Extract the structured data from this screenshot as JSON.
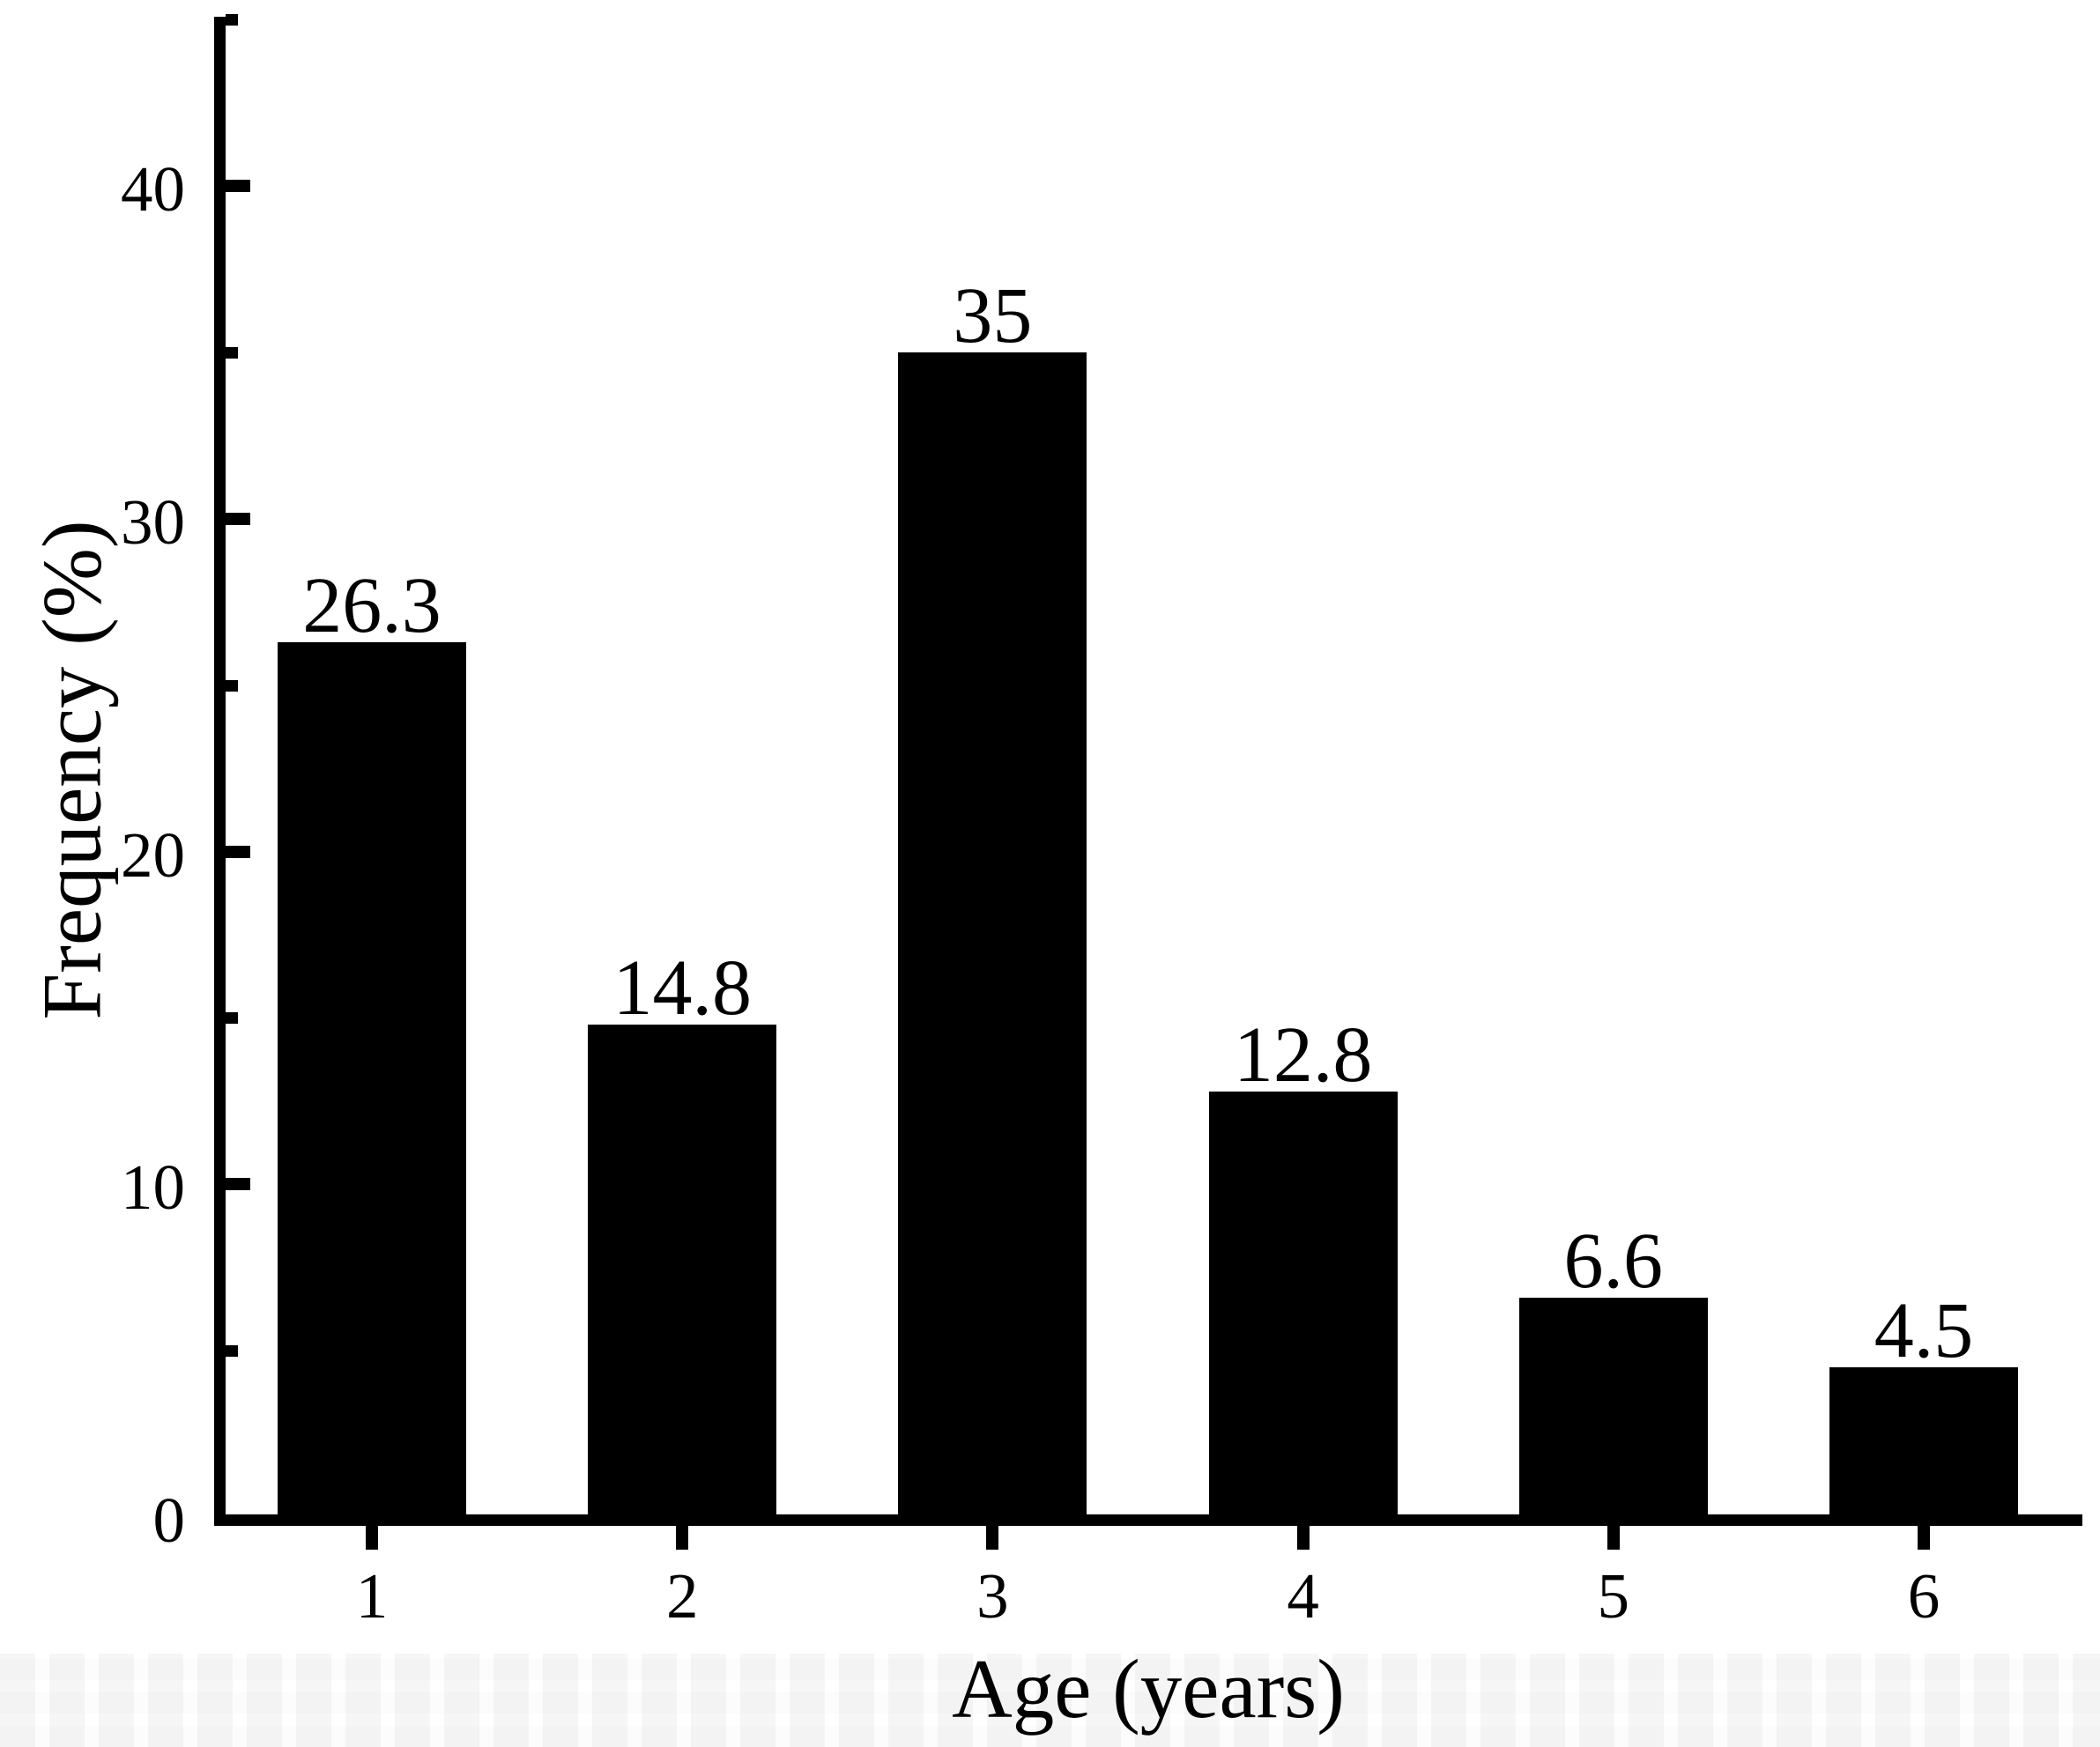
{
  "chart_data": {
    "type": "bar",
    "title": "",
    "xlabel": "Age (years)",
    "ylabel": "Frequency (%)",
    "categories": [
      "1",
      "2",
      "3",
      "4",
      "5",
      "6"
    ],
    "values": [
      26.3,
      14.8,
      35,
      12.8,
      6.6,
      4.5
    ],
    "value_labels": [
      "26.3",
      "14.8",
      "35",
      "12.8",
      "6.6",
      "4.5"
    ],
    "y_major_ticks": [
      0,
      10,
      20,
      30,
      40
    ],
    "y_minor_ticks": [
      5,
      15,
      25,
      35,
      45
    ],
    "ylim": [
      0,
      45
    ],
    "bar_color": "#000000",
    "axis_color": "#000000",
    "text_color": "#000000",
    "background_color": "#ffffff",
    "grid": "off",
    "legend": "none"
  }
}
